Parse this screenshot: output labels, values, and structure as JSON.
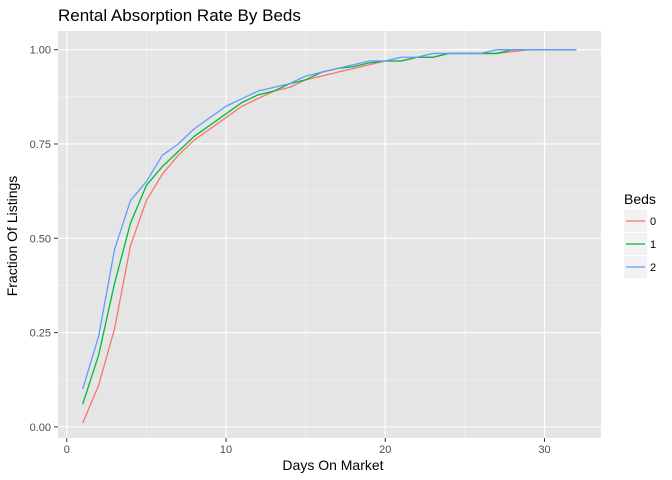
{
  "chart_data": {
    "type": "line",
    "title": "Rental Absorption Rate By Beds",
    "xlabel": "Days On Market",
    "ylabel": "Fraction Of Listings",
    "xlim": [
      -0.55,
      33.55
    ],
    "ylim": [
      -0.0295,
      1.0495
    ],
    "x_ticks": [
      0,
      10,
      20,
      30
    ],
    "x_tick_labels": [
      "0",
      "10",
      "20",
      "30"
    ],
    "y_ticks": [
      0,
      0.25,
      0.5,
      0.75,
      1.0
    ],
    "y_tick_labels": [
      "0.00",
      "0.25",
      "0.50",
      "0.75",
      "1.00"
    ],
    "grid": true,
    "legend": {
      "title": "Beds",
      "placement": "right"
    },
    "x": [
      1,
      2,
      3,
      4,
      5,
      6,
      7,
      8,
      9,
      10,
      11,
      12,
      13,
      14,
      15,
      16,
      17,
      18,
      19,
      20,
      21,
      22,
      23,
      24,
      25,
      26,
      27,
      28,
      29,
      30,
      31,
      32
    ],
    "series": [
      {
        "name": "0",
        "color": "#F8766D",
        "values": [
          0.01,
          0.11,
          0.26,
          0.48,
          0.6,
          0.67,
          0.72,
          0.76,
          0.79,
          0.82,
          0.85,
          0.87,
          0.89,
          0.9,
          0.92,
          0.93,
          0.94,
          0.95,
          0.96,
          0.97,
          0.97,
          0.98,
          0.98,
          0.99,
          0.99,
          0.99,
          0.99,
          0.995,
          1.0,
          1.0,
          1.0,
          1.0
        ]
      },
      {
        "name": "1",
        "color": "#00BA38",
        "values": [
          0.06,
          0.19,
          0.38,
          0.54,
          0.64,
          0.69,
          0.73,
          0.77,
          0.8,
          0.83,
          0.86,
          0.88,
          0.89,
          0.91,
          0.92,
          0.94,
          0.95,
          0.955,
          0.965,
          0.97,
          0.97,
          0.98,
          0.98,
          0.99,
          0.99,
          0.99,
          0.99,
          1.0,
          1.0,
          1.0,
          1.0,
          1.0
        ]
      },
      {
        "name": "2",
        "color": "#619CFF",
        "values": [
          0.1,
          0.24,
          0.47,
          0.6,
          0.65,
          0.72,
          0.75,
          0.79,
          0.82,
          0.85,
          0.87,
          0.89,
          0.9,
          0.91,
          0.93,
          0.94,
          0.95,
          0.96,
          0.97,
          0.97,
          0.98,
          0.98,
          0.99,
          0.99,
          0.99,
          0.99,
          1.0,
          1.0,
          1.0,
          1.0,
          1.0,
          1.0
        ]
      }
    ]
  },
  "colors": {
    "panel_background": "#E5E5E5",
    "grid_major": "#FFFFFF",
    "grid_minor": "#F2F2F2",
    "tick_label": "#4D4D4D"
  }
}
